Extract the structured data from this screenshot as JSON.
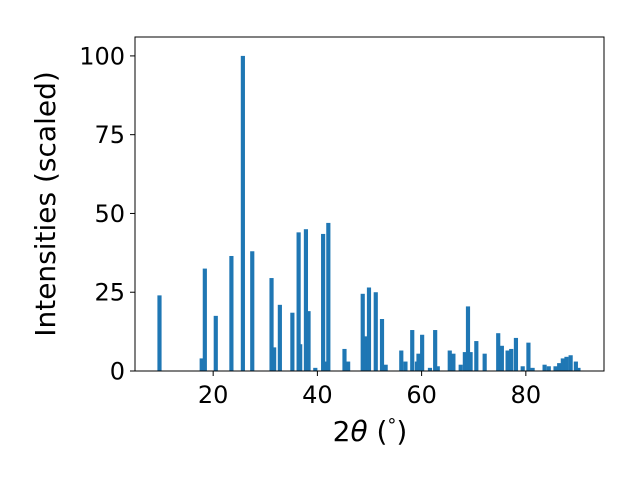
{
  "chart_data": {
    "type": "bar",
    "title": "",
    "xlabel_parts": [
      "2",
      "θ",
      " (",
      "°",
      ")"
    ],
    "ylabel": "Intensities (scaled)",
    "xlim": [
      5,
      95
    ],
    "ylim": [
      0,
      106
    ],
    "xticks": [
      20,
      40,
      60,
      80
    ],
    "yticks": [
      0,
      25,
      50,
      75,
      100
    ],
    "bar_color": "#1f77b4",
    "bar_width": 0.8,
    "series": [
      {
        "x": [
          9.7,
          17.8,
          18.4,
          20.5,
          23.5,
          25.7,
          27.5,
          31.2,
          31.7,
          32.8,
          35.2,
          36.4,
          36.7,
          37.8,
          38.3,
          39.6,
          41.1,
          41.7,
          42.1,
          45.2,
          45.9,
          48.7,
          49.3,
          49.9,
          51.2,
          52.4,
          53.1,
          56.1,
          56.9,
          58.2,
          59.1,
          59.4,
          60.1,
          61.6,
          62.6,
          63.1,
          65.4,
          66.1,
          67.5,
          68.3,
          68.9,
          69.4,
          70.5,
          72.1,
          74.7,
          75.4,
          76.5,
          77.2,
          78.1,
          79.4,
          80.5,
          81.3,
          83.6,
          84.4,
          85.7,
          86.4,
          87.1,
          87.8,
          88.6,
          89.6,
          90.1
        ],
        "values": [
          24,
          4,
          32.5,
          17.5,
          36.5,
          100,
          38,
          29.5,
          7.5,
          21,
          18.5,
          44,
          8.5,
          45,
          19,
          1,
          43.5,
          3,
          47,
          7,
          3,
          24.5,
          11,
          26.5,
          25,
          16.5,
          2,
          6.5,
          3,
          13,
          3,
          5.5,
          11.5,
          1,
          13,
          1.5,
          6.5,
          5.5,
          2,
          6,
          20.5,
          6,
          9.5,
          5.5,
          12,
          8,
          6.5,
          7,
          10.5,
          1.5,
          9,
          1,
          2,
          1.5,
          1.5,
          2.5,
          4,
          4.5,
          5,
          3,
          1
        ]
      }
    ]
  }
}
